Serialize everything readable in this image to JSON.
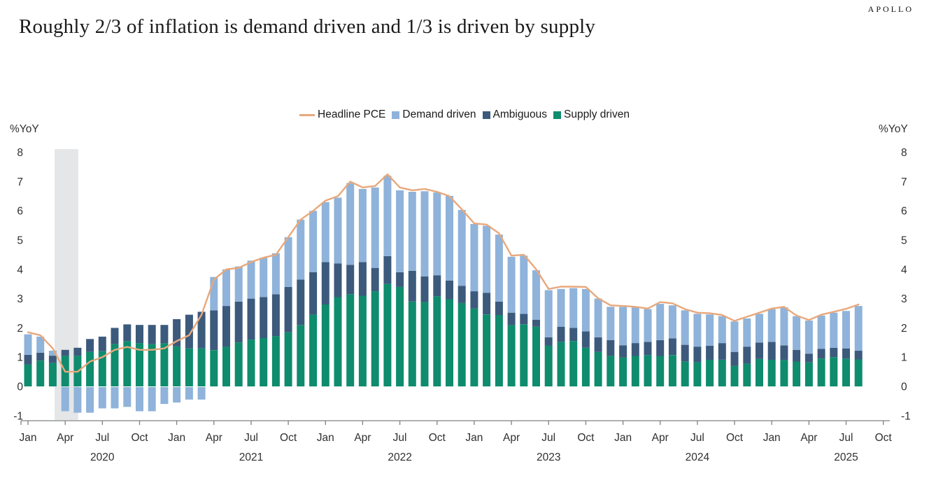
{
  "header": {
    "logo": "APOLLO",
    "title": "Roughly 2/3 of inflation is demand driven and 1/3 is driven by supply"
  },
  "axes": {
    "left_label": "%YoY",
    "right_label": "%YoY"
  },
  "legend": [
    {
      "label": "Headline PCE",
      "type": "line",
      "color": "#E8A87C"
    },
    {
      "label": "Demand driven",
      "type": "square",
      "color": "#8FB3DA"
    },
    {
      "label": "Ambiguous",
      "type": "square",
      "color": "#3C5A7C"
    },
    {
      "label": "Supply driven",
      "type": "square",
      "color": "#0E8C6D"
    }
  ],
  "chart_data": {
    "type": "bar",
    "stacked": true,
    "title": "Roughly 2/3 of inflation is demand driven and 1/3 is driven by supply",
    "xlabel": "",
    "ylabel": "%YoY",
    "ylim": [
      -1,
      8
    ],
    "yticks": [
      8,
      7,
      6,
      5,
      4,
      3,
      2,
      1,
      0,
      -1
    ],
    "grid": false,
    "legend_position": "top-center",
    "categories": [
      "Jan 2020",
      "Feb 2020",
      "Mar 2020",
      "Apr 2020",
      "May 2020",
      "Jun 2020",
      "Jul 2020",
      "Aug 2020",
      "Sep 2020",
      "Oct 2020",
      "Nov 2020",
      "Dec 2020",
      "Jan 2021",
      "Feb 2021",
      "Mar 2021",
      "Apr 2021",
      "May 2021",
      "Jun 2021",
      "Jul 2021",
      "Aug 2021",
      "Sep 2021",
      "Oct 2021",
      "Nov 2021",
      "Dec 2021",
      "Jan 2022",
      "Feb 2022",
      "Mar 2022",
      "Apr 2022",
      "May 2022",
      "Jun 2022",
      "Jul 2022",
      "Aug 2022",
      "Sep 2022",
      "Oct 2022",
      "Nov 2022",
      "Dec 2022",
      "Jan 2023",
      "Feb 2023",
      "Mar 2023",
      "Apr 2023",
      "May 2023",
      "Jun 2023",
      "Jul 2023",
      "Aug 2023",
      "Sep 2023",
      "Oct 2023",
      "Nov 2023",
      "Dec 2023",
      "Jan 2024",
      "Feb 2024",
      "Mar 2024",
      "Apr 2024",
      "May 2024",
      "Jun 2024",
      "Jul 2024",
      "Aug 2024",
      "Sep 2024",
      "Oct 2024",
      "Nov 2024",
      "Dec 2024",
      "Jan 2025",
      "Feb 2025",
      "Mar 2025",
      "Apr 2025",
      "May 2025",
      "Jun 2025",
      "Jul 2025",
      "Aug 2025"
    ],
    "series": [
      {
        "name": "Demand driven",
        "color": "#8FB3DA",
        "values": [
          0.7,
          0.55,
          0.17,
          -0.85,
          -0.9,
          -0.9,
          -0.75,
          -0.75,
          -0.7,
          -0.85,
          -0.85,
          -0.6,
          -0.55,
          -0.45,
          -0.45,
          1.14,
          1.25,
          1.2,
          1.3,
          1.35,
          1.4,
          1.7,
          2.05,
          2.1,
          2.05,
          2.25,
          2.8,
          2.5,
          2.75,
          2.75,
          2.8,
          2.7,
          2.91,
          2.83,
          2.89,
          2.59,
          2.3,
          2.29,
          2.29,
          1.91,
          1.99,
          1.69,
          1.61,
          1.29,
          1.36,
          1.45,
          1.32,
          1.14,
          1.32,
          1.22,
          1.12,
          1.24,
          1.13,
          1.18,
          1.12,
          1.07,
          0.92,
          1.04,
          0.96,
          0.98,
          1.12,
          1.3,
          1.15,
          1.13,
          1.14,
          1.2,
          1.28,
          1.53
        ]
      },
      {
        "name": "Ambiguous",
        "color": "#3C5A7C",
        "values": [
          0.33,
          0.27,
          0.25,
          0.2,
          0.27,
          0.44,
          0.5,
          0.55,
          0.57,
          0.62,
          0.65,
          0.63,
          0.93,
          1.15,
          1.25,
          1.36,
          1.4,
          1.4,
          1.4,
          1.4,
          1.43,
          1.55,
          1.55,
          1.45,
          1.45,
          1.15,
          1.0,
          1.15,
          0.8,
          0.95,
          0.5,
          1.05,
          0.88,
          0.72,
          0.64,
          0.59,
          0.59,
          0.74,
          0.46,
          0.42,
          0.36,
          0.24,
          0.28,
          0.52,
          0.45,
          0.56,
          0.5,
          0.53,
          0.41,
          0.44,
          0.45,
          0.54,
          0.57,
          0.57,
          0.53,
          0.48,
          0.57,
          0.48,
          0.58,
          0.56,
          0.61,
          0.5,
          0.4,
          0.3,
          0.33,
          0.32,
          0.35,
          0.3
        ]
      },
      {
        "name": "Supply driven",
        "color": "#0E8C6D",
        "values": [
          0.75,
          0.88,
          0.8,
          1.05,
          1.05,
          1.18,
          1.2,
          1.45,
          1.55,
          1.48,
          1.45,
          1.47,
          1.37,
          1.3,
          1.3,
          1.24,
          1.35,
          1.5,
          1.6,
          1.65,
          1.72,
          1.85,
          2.1,
          2.45,
          2.8,
          3.05,
          3.15,
          3.1,
          3.25,
          3.5,
          3.4,
          2.9,
          2.88,
          3.08,
          2.98,
          2.85,
          2.66,
          2.46,
          2.44,
          2.1,
          2.12,
          2.04,
          1.4,
          1.52,
          1.55,
          1.32,
          1.18,
          1.05,
          0.99,
          1.04,
          1.07,
          1.04,
          1.07,
          0.85,
          0.83,
          0.91,
          0.91,
          0.7,
          0.78,
          0.94,
          0.91,
          0.9,
          0.85,
          0.82,
          0.95,
          1.0,
          0.95,
          0.92
        ]
      }
    ],
    "line_series": {
      "name": "Headline PCE",
      "color": "#E8A87C",
      "values": [
        1.85,
        1.75,
        1.3,
        0.5,
        0.5,
        0.85,
        1.0,
        1.25,
        1.35,
        1.25,
        1.25,
        1.3,
        1.55,
        1.75,
        2.45,
        3.65,
        4.0,
        4.05,
        4.25,
        4.4,
        4.5,
        5.1,
        5.7,
        6.0,
        6.35,
        6.5,
        7.0,
        6.8,
        6.85,
        7.25,
        6.8,
        6.7,
        6.75,
        6.65,
        6.5,
        6.05,
        5.57,
        5.53,
        5.23,
        4.47,
        4.5,
        4.0,
        3.33,
        3.41,
        3.41,
        3.4,
        3.01,
        2.77,
        2.75,
        2.72,
        2.66,
        2.88,
        2.84,
        2.64,
        2.52,
        2.5,
        2.44,
        2.24,
        2.38,
        2.52,
        2.66,
        2.72,
        2.42,
        2.27,
        2.45,
        2.55,
        2.65,
        2.8
      ]
    },
    "xticks": [
      {
        "index": 0,
        "label": "Jan"
      },
      {
        "index": 3,
        "label": "Apr"
      },
      {
        "index": 6,
        "label": "Jul"
      },
      {
        "index": 9,
        "label": "Oct"
      },
      {
        "index": 12,
        "label": "Jan"
      },
      {
        "index": 15,
        "label": "Apr"
      },
      {
        "index": 18,
        "label": "Jul"
      },
      {
        "index": 21,
        "label": "Oct"
      },
      {
        "index": 24,
        "label": "Jan"
      },
      {
        "index": 27,
        "label": "Apr"
      },
      {
        "index": 30,
        "label": "Jul"
      },
      {
        "index": 33,
        "label": "Oct"
      },
      {
        "index": 36,
        "label": "Jan"
      },
      {
        "index": 39,
        "label": "Apr"
      },
      {
        "index": 42,
        "label": "Jul"
      },
      {
        "index": 45,
        "label": "Oct"
      },
      {
        "index": 48,
        "label": "Jan"
      },
      {
        "index": 51,
        "label": "Apr"
      },
      {
        "index": 54,
        "label": "Jul"
      },
      {
        "index": 57,
        "label": "Oct"
      },
      {
        "index": 60,
        "label": "Jan"
      },
      {
        "index": 63,
        "label": "Apr"
      },
      {
        "index": 66,
        "label": "Jul"
      },
      {
        "index": 69,
        "label": "Oct"
      }
    ],
    "year_labels": [
      {
        "index": 6,
        "label": "2020"
      },
      {
        "index": 18,
        "label": "2021"
      },
      {
        "index": 30,
        "label": "2022"
      },
      {
        "index": 42,
        "label": "2023"
      },
      {
        "index": 54,
        "label": "2024"
      },
      {
        "index": 66,
        "label": "2025"
      }
    ],
    "recession_band": {
      "start_month": "Mar 2020",
      "end_month": "Apr 2020",
      "start_index": 2,
      "end_index": 3,
      "color": "#E4E6E7"
    }
  }
}
